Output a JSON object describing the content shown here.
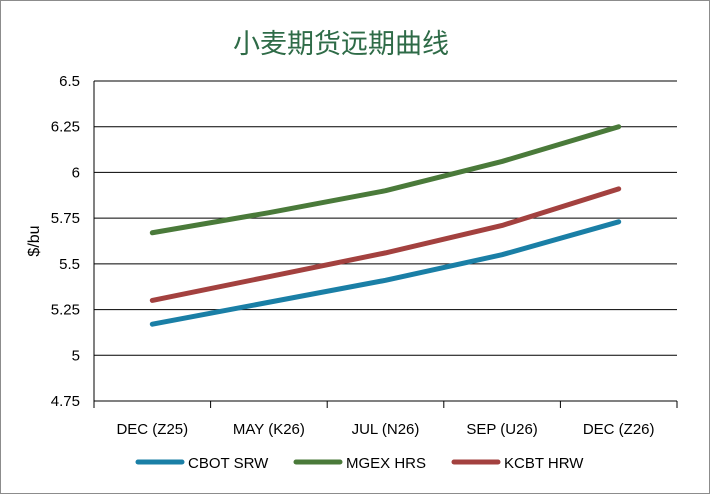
{
  "chart_data": {
    "type": "line",
    "title": "小麦期货远期曲线",
    "xlabel": "",
    "ylabel": "$/bu",
    "categories": [
      "DEC (Z25)",
      "MAY (K26)",
      "JUL (N26)",
      "SEP (U26)",
      "DEC (Z26)"
    ],
    "ylim": [
      4.75,
      6.5
    ],
    "yticks": [
      "4.75",
      "5",
      "5.25",
      "5.5",
      "5.75",
      "6",
      "6.25",
      "6.5"
    ],
    "grid": true,
    "legend_position": "bottom",
    "series": [
      {
        "name": "CBOT SRW",
        "color": "#1a7fa6",
        "values": [
          5.17,
          5.29,
          5.41,
          5.55,
          5.73
        ]
      },
      {
        "name": "MGEX HRS",
        "color": "#4a7a3a",
        "values": [
          5.67,
          5.78,
          5.9,
          6.06,
          6.25
        ]
      },
      {
        "name": "KCBT HRW",
        "color": "#a3413f",
        "values": [
          5.3,
          5.43,
          5.56,
          5.71,
          5.91
        ]
      }
    ]
  }
}
